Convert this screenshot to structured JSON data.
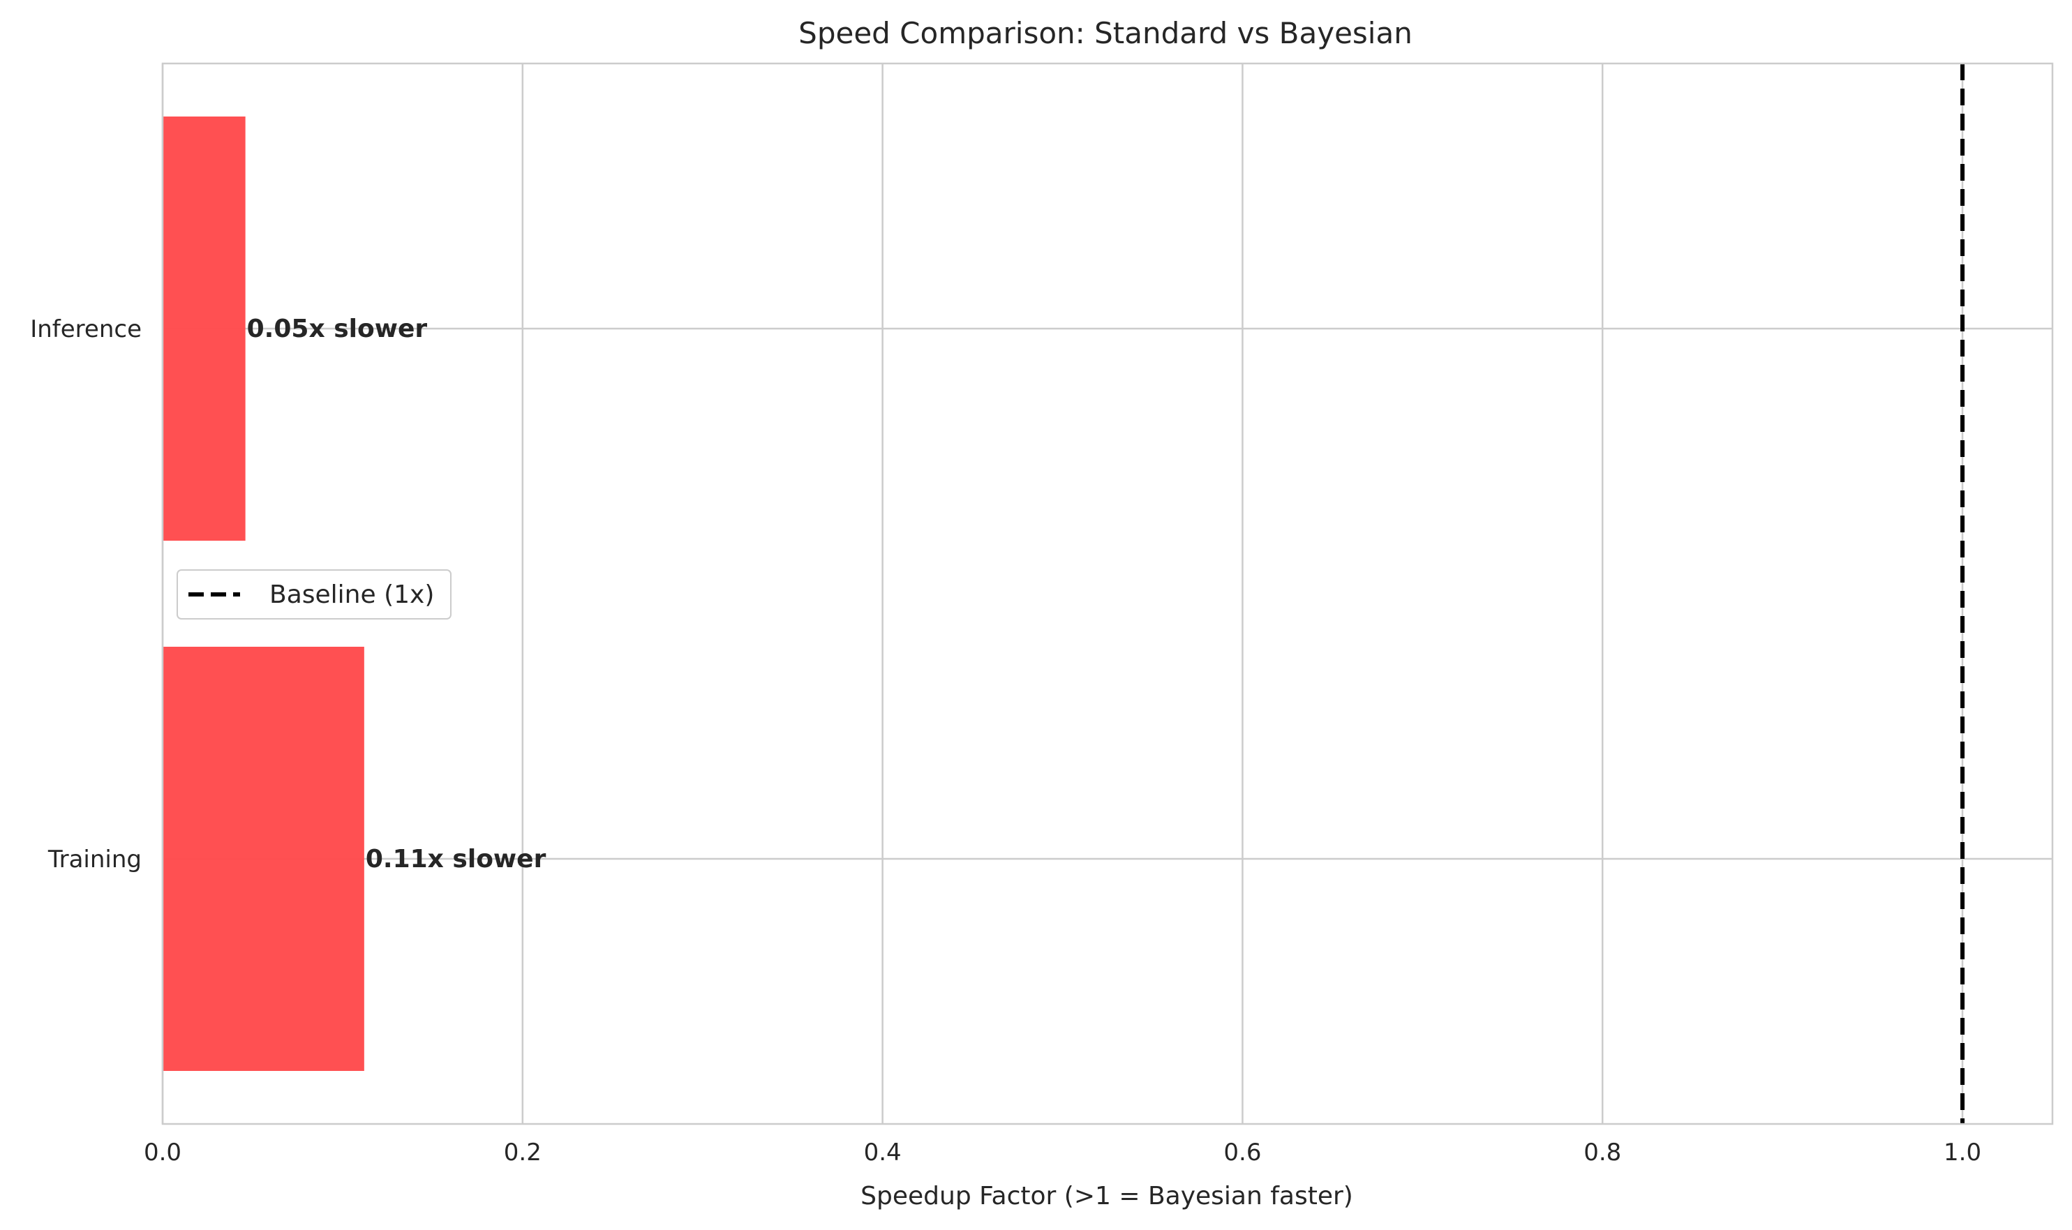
{
  "chart_data": {
    "type": "bar",
    "orientation": "horizontal",
    "title": "Speed Comparison: Standard vs Bayesian",
    "xlabel": "Speedup Factor (>1 = Bayesian faster)",
    "ylabel": "",
    "xlim": [
      0.0,
      1.05
    ],
    "xticks": [
      0.0,
      0.2,
      0.4,
      0.6,
      0.8,
      1.0
    ],
    "xtick_labels": [
      "0.0",
      "0.2",
      "0.4",
      "0.6",
      "0.8",
      "1.0"
    ],
    "categories": [
      "Training",
      "Inference"
    ],
    "values": [
      0.112,
      0.046
    ],
    "bar_labels": [
      "0.11x slower",
      "0.05x slower"
    ],
    "bar_color": "#ff4d4f",
    "grid": true,
    "reference_line": {
      "x": 1.0,
      "style": "dashed",
      "color": "#000000",
      "label": "Baseline (1x)"
    },
    "legend": {
      "position": "center-left",
      "entries": [
        "Baseline (1x)"
      ]
    }
  }
}
